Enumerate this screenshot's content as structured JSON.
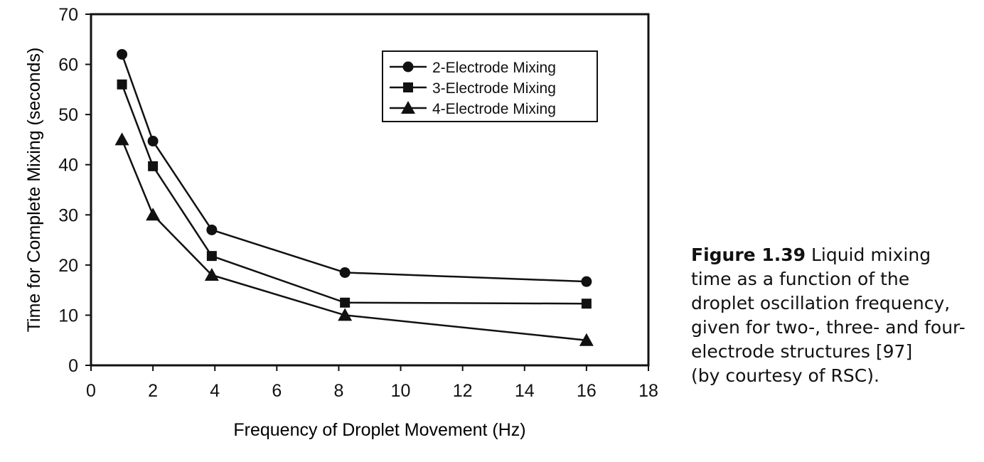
{
  "chart_data": {
    "type": "line",
    "xlabel": "Frequency of Droplet Movement (Hz)",
    "ylabel": "Time for Complete Mixing (seconds)",
    "xlim": [
      0,
      18
    ],
    "ylim": [
      0,
      70
    ],
    "xticks": [
      0,
      2,
      4,
      6,
      8,
      10,
      12,
      14,
      16,
      18
    ],
    "yticks": [
      0,
      10,
      20,
      30,
      40,
      50,
      60,
      70
    ],
    "grid": false,
    "legend_position": "top-right",
    "x_tick_label_values": [
      0,
      2,
      4,
      6,
      8,
      10,
      12,
      14,
      16,
      18
    ],
    "plot_x_positions": [
      1,
      2,
      3.9,
      8.2,
      16
    ],
    "series": [
      {
        "name": "2-Electrode Mixing",
        "marker": "circle",
        "x": [
          1,
          2,
          3.9,
          8.2,
          16
        ],
        "values": [
          62,
          44.7,
          27,
          18.5,
          16.7
        ]
      },
      {
        "name": "3-Electrode Mixing",
        "marker": "square",
        "x": [
          1,
          2,
          3.9,
          8.2,
          16
        ],
        "values": [
          56,
          39.7,
          21.8,
          12.5,
          12.3
        ]
      },
      {
        "name": "4-Electrode Mixing",
        "marker": "triangle",
        "x": [
          1,
          2,
          3.9,
          8.2,
          16
        ],
        "values": [
          45,
          30,
          18,
          10,
          5
        ]
      }
    ]
  },
  "caption": {
    "figure_label": "Figure 1.39",
    "text": "Liquid mixing time as a function of the droplet oscillation frequency, given for two-, three- and four-electrode structures [97]",
    "credit": "(by courtesy of RSC)."
  }
}
